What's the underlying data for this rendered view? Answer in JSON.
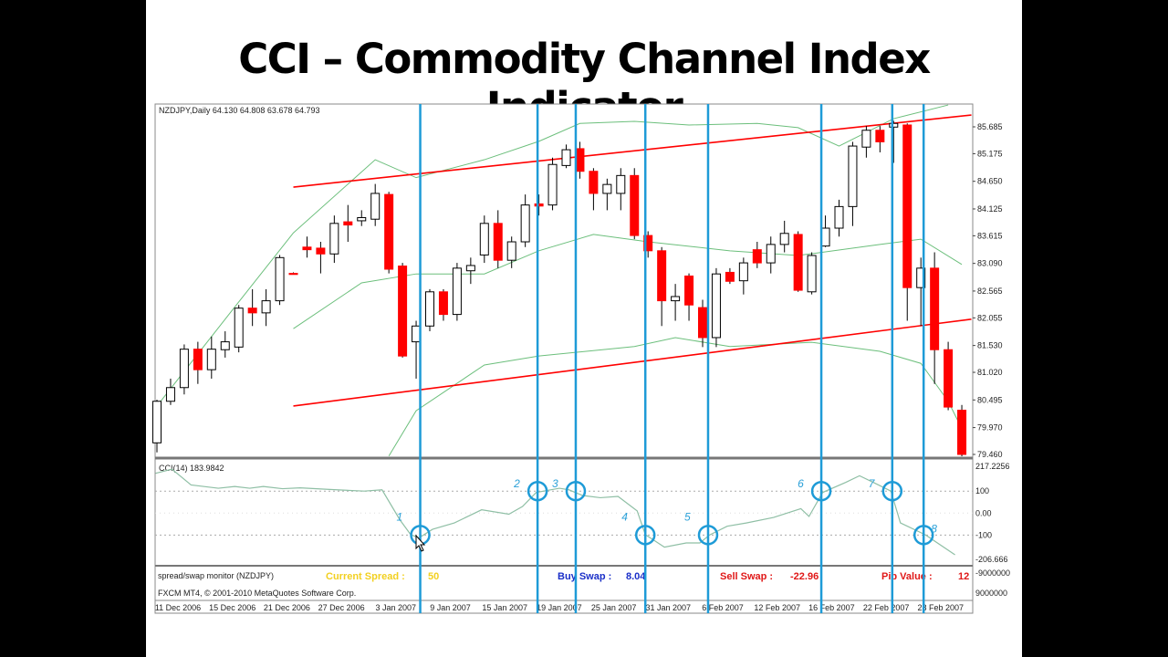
{
  "slide_title": "CCI – Commodity Channel Index Indicator",
  "chart_data": {
    "type": "candlestick",
    "title": "NZDJPY,Daily",
    "ohlc_header": "64.130 64.808 63.678 64.793",
    "price_axis": {
      "ylim": [
        79.46,
        85.685
      ],
      "tick_labels": [
        "85.685",
        "85.175",
        "84.650",
        "84.125",
        "83.615",
        "83.090",
        "82.565",
        "82.055",
        "81.530",
        "81.020",
        "80.495",
        "79.970",
        "79.460"
      ]
    },
    "x_tick_labels": [
      "11 Dec 2006",
      "15 Dec 2006",
      "21 Dec 2006",
      "27 Dec 2006",
      "3 Jan 2007",
      "9 Jan 2007",
      "15 Jan 2007",
      "19 Jan 2007",
      "25 Jan 2007",
      "31 Jan 2007",
      "6 Feb 2007",
      "12 Feb 2007",
      "16 Feb 2007",
      "22 Feb 2007",
      "28 Feb 2007"
    ],
    "colors": {
      "bull": "#ffffff",
      "bear": "#ff0000",
      "band": "#6cbf7c",
      "trend": "#ff0000",
      "marker": "#1e9bd7",
      "cci": "#8fbfa5"
    },
    "candles": [
      [
        79.68,
        80.5,
        79.5,
        80.47
      ],
      [
        80.47,
        80.9,
        80.4,
        80.73
      ],
      [
        80.73,
        81.55,
        80.6,
        81.46
      ],
      [
        81.46,
        81.6,
        80.8,
        81.07
      ],
      [
        81.07,
        81.7,
        80.9,
        81.46
      ],
      [
        81.45,
        81.8,
        81.3,
        81.6
      ],
      [
        81.5,
        82.3,
        81.4,
        82.24
      ],
      [
        82.24,
        82.6,
        81.9,
        82.15
      ],
      [
        82.15,
        82.6,
        81.9,
        82.38
      ],
      [
        82.38,
        83.25,
        82.3,
        83.2
      ],
      [
        82.9,
        82.92,
        82.88,
        82.88
      ],
      [
        83.4,
        83.6,
        83.2,
        83.35
      ],
      [
        83.38,
        83.5,
        82.9,
        83.27
      ],
      [
        83.27,
        84.0,
        83.1,
        83.85
      ],
      [
        83.88,
        84.2,
        83.5,
        83.82
      ],
      [
        83.9,
        84.1,
        83.8,
        83.96
      ],
      [
        83.93,
        84.6,
        83.8,
        84.42
      ],
      [
        84.4,
        84.45,
        82.9,
        82.98
      ],
      [
        83.04,
        83.1,
        81.3,
        81.33
      ],
      [
        81.6,
        82.0,
        80.9,
        81.9
      ],
      [
        81.9,
        82.6,
        81.8,
        82.55
      ],
      [
        82.55,
        82.6,
        82.0,
        82.12
      ],
      [
        82.12,
        83.1,
        82.0,
        83.0
      ],
      [
        82.95,
        83.2,
        82.7,
        83.05
      ],
      [
        83.25,
        84.0,
        83.1,
        83.85
      ],
      [
        83.85,
        84.1,
        83.0,
        83.15
      ],
      [
        83.15,
        83.6,
        83.0,
        83.5
      ],
      [
        83.5,
        84.4,
        83.4,
        84.2
      ],
      [
        84.22,
        84.4,
        84.0,
        84.18
      ],
      [
        84.2,
        85.1,
        84.1,
        84.97
      ],
      [
        84.95,
        85.35,
        84.9,
        85.25
      ],
      [
        85.27,
        85.4,
        84.7,
        84.84
      ],
      [
        84.84,
        84.9,
        84.1,
        84.42
      ],
      [
        84.42,
        84.7,
        84.1,
        84.59
      ],
      [
        84.42,
        84.9,
        84.1,
        84.76
      ],
      [
        84.76,
        84.9,
        83.55,
        83.62
      ],
      [
        83.62,
        83.7,
        83.2,
        83.33
      ],
      [
        83.33,
        83.4,
        81.9,
        82.38
      ],
      [
        82.38,
        82.7,
        82.0,
        82.46
      ],
      [
        82.85,
        82.9,
        82.0,
        82.3
      ],
      [
        82.25,
        82.4,
        81.5,
        81.68
      ],
      [
        81.68,
        83.0,
        81.5,
        82.89
      ],
      [
        82.92,
        83.0,
        82.7,
        82.75
      ],
      [
        82.76,
        83.2,
        82.5,
        83.1
      ],
      [
        83.35,
        83.5,
        83.0,
        83.1
      ],
      [
        83.1,
        83.6,
        82.9,
        83.45
      ],
      [
        83.45,
        83.9,
        83.3,
        83.66
      ],
      [
        83.64,
        83.7,
        82.55,
        82.58
      ],
      [
        82.55,
        83.3,
        82.5,
        83.24
      ],
      [
        83.42,
        84.0,
        83.4,
        83.76
      ],
      [
        83.76,
        84.3,
        83.6,
        84.17
      ],
      [
        84.17,
        85.4,
        83.8,
        85.32
      ],
      [
        85.3,
        85.7,
        85.1,
        85.62
      ],
      [
        85.62,
        85.7,
        85.2,
        85.4
      ],
      [
        85.68,
        85.8,
        85.0,
        85.75
      ],
      [
        85.72,
        85.75,
        82.0,
        82.63
      ],
      [
        82.63,
        83.2,
        81.9,
        83.0
      ],
      [
        83.0,
        83.3,
        80.8,
        81.45
      ],
      [
        81.45,
        81.6,
        80.3,
        80.36
      ],
      [
        80.3,
        80.4,
        79.4,
        79.46
      ]
    ],
    "bollinger": {
      "upper": [
        [
          0,
          80.38
        ],
        [
          5,
          82.03
        ],
        [
          10,
          83.67
        ],
        [
          16,
          85.06
        ],
        [
          19,
          84.72
        ],
        [
          24,
          85.06
        ],
        [
          28,
          85.41
        ],
        [
          31,
          85.75
        ],
        [
          35,
          85.79
        ],
        [
          39,
          85.72
        ],
        [
          44,
          85.75
        ],
        [
          47,
          85.67
        ],
        [
          50,
          85.32
        ],
        [
          54,
          85.84
        ],
        [
          58,
          86.1
        ]
      ],
      "middle": [
        [
          10,
          81.85
        ],
        [
          15,
          82.72
        ],
        [
          19,
          82.89
        ],
        [
          24,
          82.89
        ],
        [
          28,
          83.33
        ],
        [
          32,
          83.64
        ],
        [
          36,
          83.5
        ],
        [
          42,
          83.33
        ],
        [
          47,
          83.24
        ],
        [
          53,
          83.45
        ],
        [
          56,
          83.55
        ],
        [
          59,
          83.07
        ]
      ],
      "lower": [
        [
          17,
          79.43
        ],
        [
          19,
          80.29
        ],
        [
          24,
          81.16
        ],
        [
          28,
          81.33
        ],
        [
          35,
          81.51
        ],
        [
          38,
          81.68
        ],
        [
          42,
          81.51
        ],
        [
          48,
          81.59
        ],
        [
          53,
          81.42
        ],
        [
          56,
          81.19
        ],
        [
          58,
          80.47
        ],
        [
          59,
          79.95
        ]
      ]
    },
    "trendlines": [
      {
        "name": "upper channel",
        "from": [
          10,
          84.54
        ],
        "to": [
          59.7,
          85.91
        ]
      },
      {
        "name": "lower channel",
        "from": [
          10,
          80.38
        ],
        "to": [
          59.7,
          82.03
        ]
      }
    ],
    "cci": {
      "label": "CCI(14) 183.9842",
      "ylim": [
        -206.666,
        217.2256
      ],
      "tick_labels": [
        "217.2256",
        "100",
        "0.00",
        "-100",
        "-206.666"
      ],
      "levels": [
        100,
        -100
      ],
      "values": [
        [
          -0.1,
          181
        ],
        [
          1.1,
          200
        ],
        [
          2.5,
          128
        ],
        [
          4.5,
          113
        ],
        [
          5.7,
          121
        ],
        [
          6.8,
          113
        ],
        [
          7.8,
          121
        ],
        [
          9.2,
          111
        ],
        [
          10.5,
          115
        ],
        [
          12.5,
          108
        ],
        [
          15.2,
          100
        ],
        [
          16.5,
          106
        ],
        [
          17.8,
          -30
        ],
        [
          18.6,
          -98
        ],
        [
          19.2,
          -113
        ],
        [
          20.2,
          -74
        ],
        [
          21.8,
          -45
        ],
        [
          23.8,
          15
        ],
        [
          25.8,
          -5
        ],
        [
          26.8,
          30
        ],
        [
          27.8,
          94
        ],
        [
          29.5,
          113
        ],
        [
          30.2,
          106
        ],
        [
          31.2,
          80
        ],
        [
          32.5,
          70
        ],
        [
          33.8,
          76
        ],
        [
          35.2,
          10
        ],
        [
          35.8,
          -98
        ],
        [
          37.2,
          -155
        ],
        [
          38.8,
          -136
        ],
        [
          39.8,
          -136
        ],
        [
          40.5,
          -100
        ],
        [
          41.8,
          -60
        ],
        [
          43.2,
          -45
        ],
        [
          45.2,
          -20
        ],
        [
          47.2,
          20
        ],
        [
          47.8,
          -15
        ],
        [
          48.8,
          94
        ],
        [
          50.5,
          140
        ],
        [
          51.5,
          170
        ],
        [
          52.5,
          140
        ],
        [
          53.8,
          100
        ],
        [
          54.5,
          -45
        ],
        [
          56.3,
          -98
        ],
        [
          58.5,
          -190
        ]
      ]
    },
    "signals": [
      {
        "label": "1",
        "bar": 19.3,
        "cci": -100
      },
      {
        "label": "2",
        "bar": 27.9,
        "cci": 100
      },
      {
        "label": "3",
        "bar": 30.7,
        "cci": 100
      },
      {
        "label": "4",
        "bar": 35.8,
        "cci": -100
      },
      {
        "label": "5",
        "bar": 40.4,
        "cci": -100
      },
      {
        "label": "6",
        "bar": 48.7,
        "cci": 100
      },
      {
        "label": "7",
        "bar": 53.9,
        "cci": 100
      },
      {
        "label": "8",
        "bar": 56.2,
        "cci": -100
      }
    ]
  },
  "monitor": {
    "name": "spread/swap monitor (NZDJPY)",
    "spread_label": "Current Spread :",
    "spread_value": "50",
    "buy_swap_label": "Buy Swap :",
    "buy_swap_value": "8.04",
    "sell_swap_label": "Sell Swap :",
    "sell_swap_value": "-22.96",
    "pip_label": "Pip Value :",
    "pip_value": "12",
    "copyright": "FXCM MT4, © 2001-2010 MetaQuotes Software Corp.",
    "axis_top": "-9000000",
    "axis_bottom": "9000000"
  }
}
